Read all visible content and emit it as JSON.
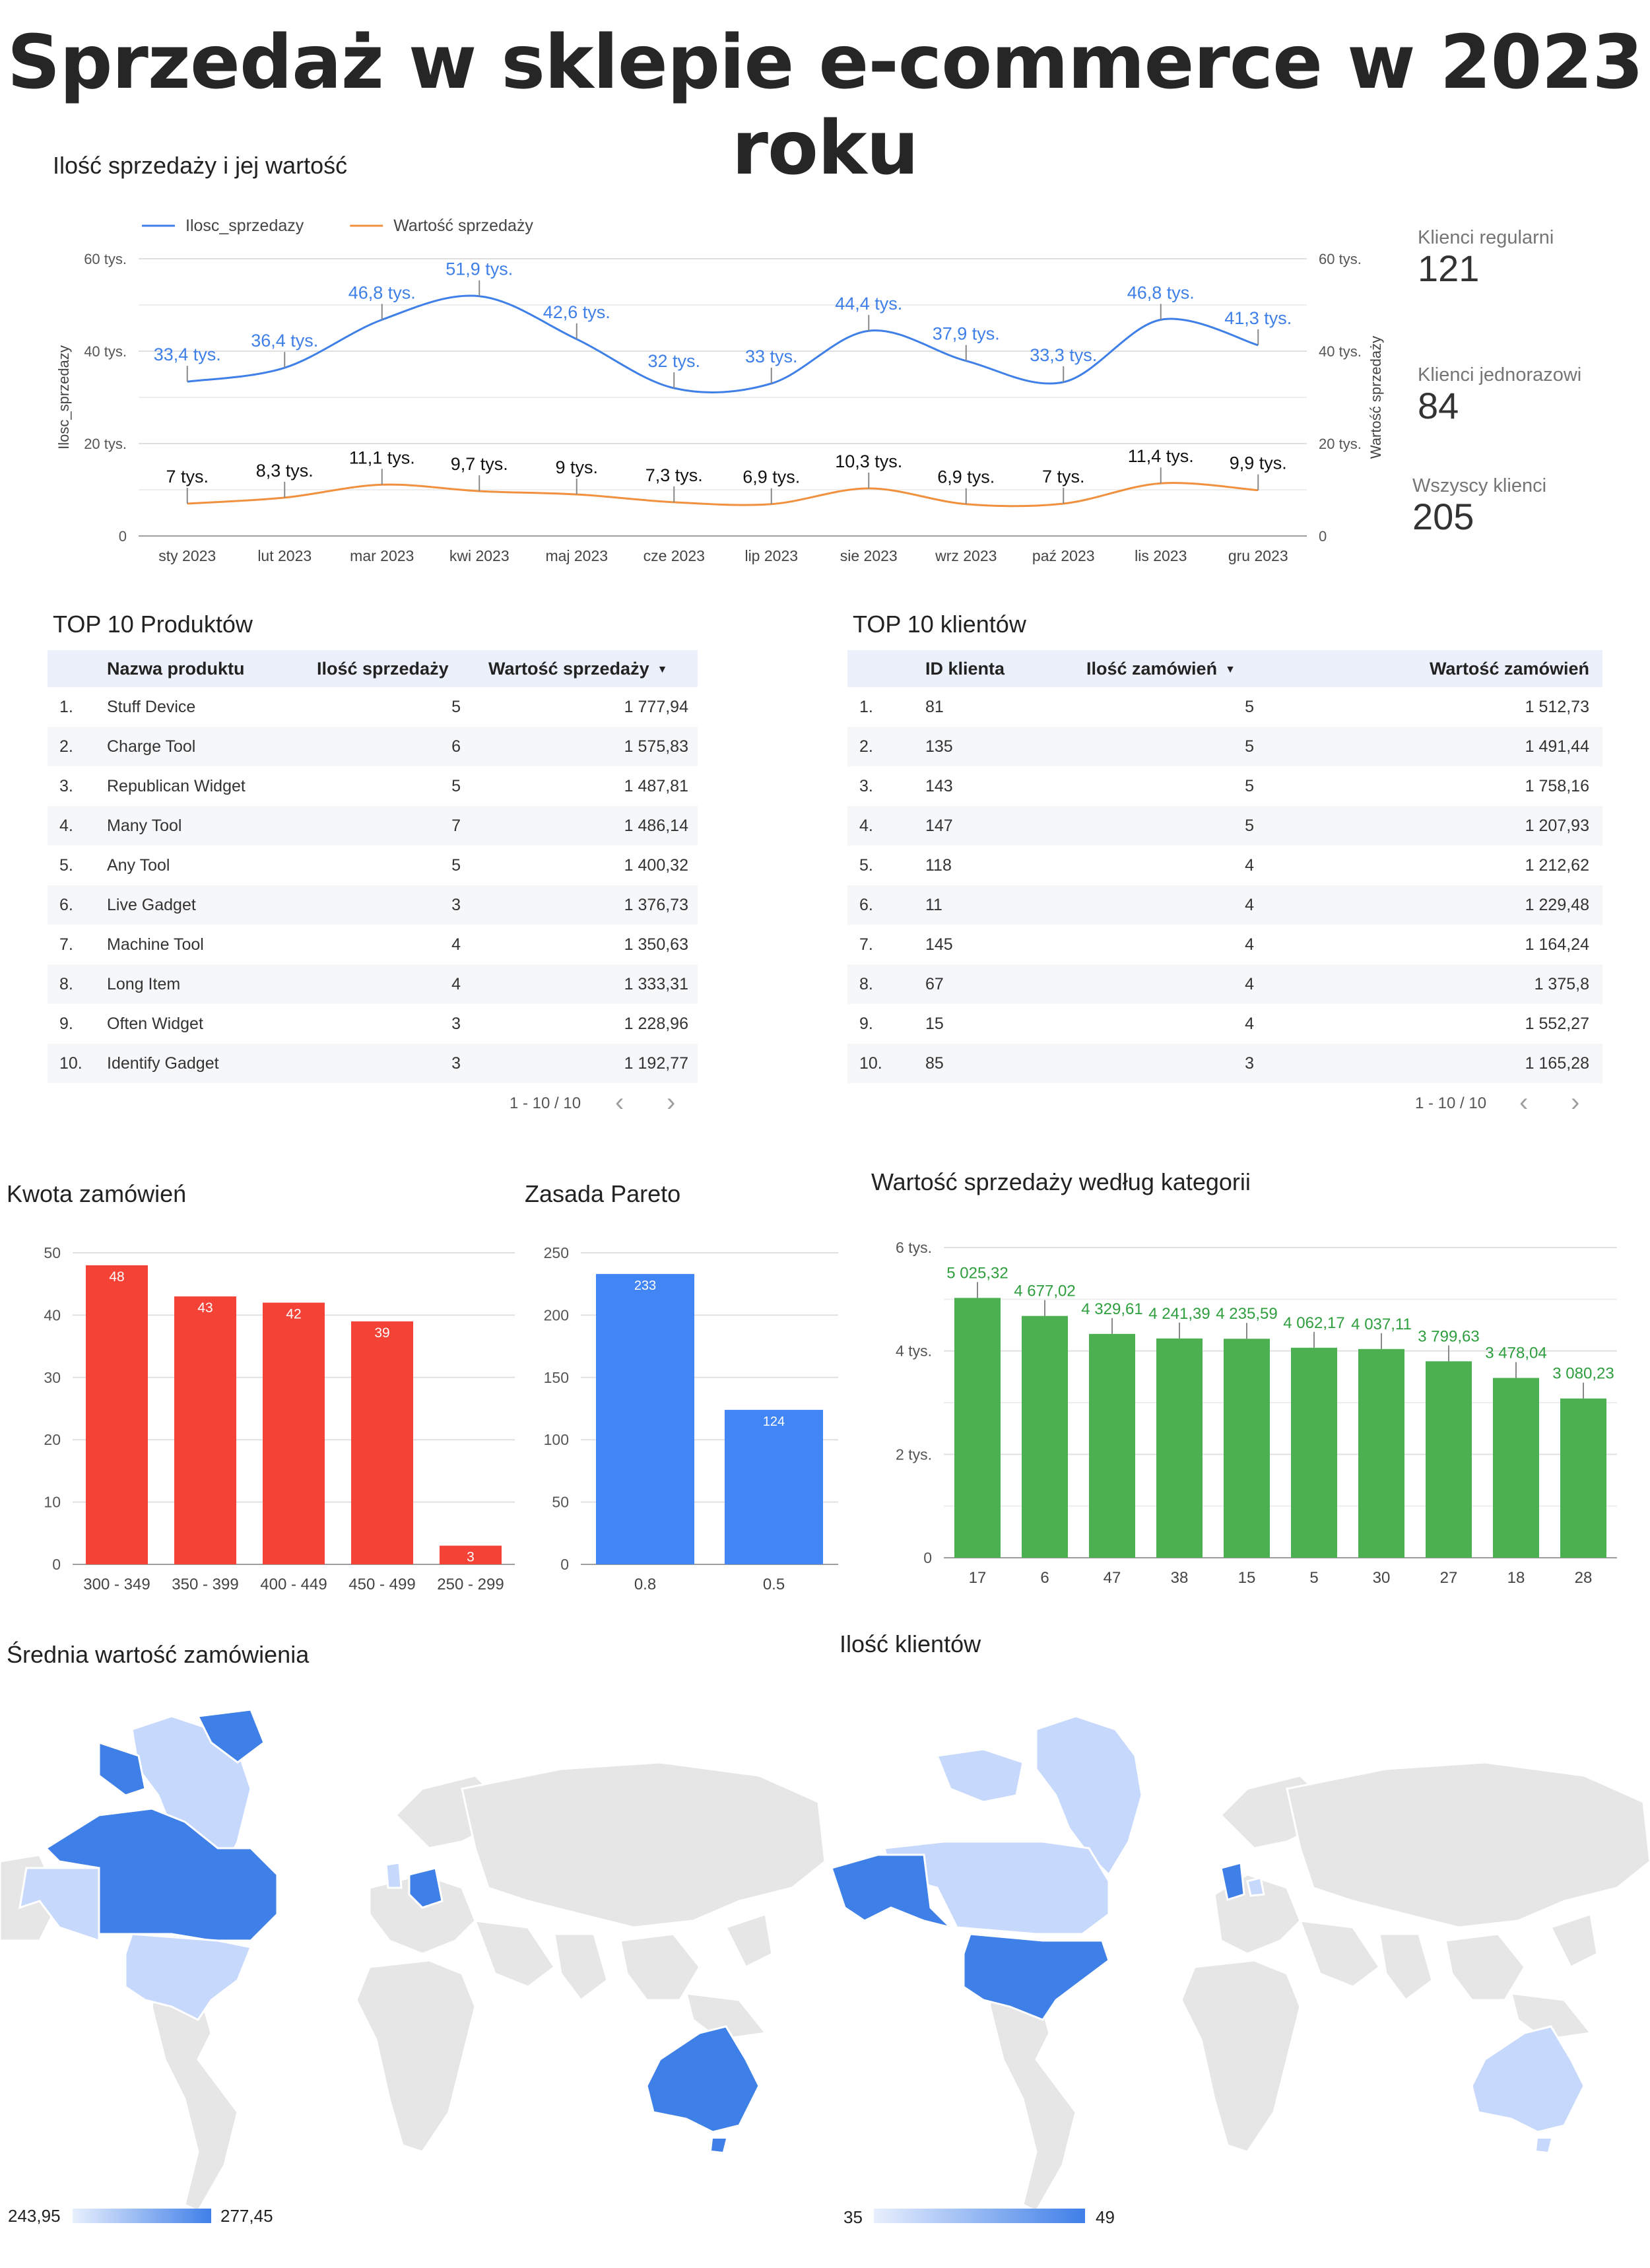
{
  "title": "Sprzedaż w sklepie e-commerce w 2023 roku",
  "colors": {
    "blue": "#3f7fe8",
    "orange": "#f0913f",
    "red": "#f44336",
    "bar_blue": "#4285f4",
    "green": "#4caf50",
    "map_light": "#c6d8fb",
    "map_dark": "#3f7fe8",
    "map_base": "#e6e6e6"
  },
  "kpis": [
    {
      "label": "Klienci regularni",
      "value": "121"
    },
    {
      "label": "Klienci jednorazowi",
      "value": "84"
    },
    {
      "label": "Wszyscy klienci",
      "value": "205"
    }
  ],
  "chart_data": [
    {
      "id": "sales-line",
      "type": "line",
      "title": "Ilość sprzedaży i jej wartość",
      "categories": [
        "sty 2023",
        "lut 2023",
        "mar 2023",
        "kwi 2023",
        "maj 2023",
        "cze 2023",
        "lip 2023",
        "sie 2023",
        "wrz 2023",
        "paź 2023",
        "lis 2023",
        "gru 2023"
      ],
      "series": [
        {
          "name": "Ilosc_sprzedazy",
          "axis": "left",
          "color": "#3f7fe8",
          "values": [
            33400,
            36400,
            46800,
            51900,
            42600,
            32000,
            33000,
            44400,
            37900,
            33300,
            46800,
            41300
          ],
          "labels": [
            "33,4 tys.",
            "36,4 tys.",
            "46,8 tys.",
            "51,9 tys.",
            "42,6 tys.",
            "32 tys.",
            "33 tys.",
            "44,4 tys.",
            "37,9 tys.",
            "33,3 tys.",
            "46,8 tys.",
            "41,3 tys."
          ]
        },
        {
          "name": "Wartość sprzedaży",
          "axis": "right",
          "color": "#f0913f",
          "values": [
            7000,
            8300,
            11100,
            9700,
            9000,
            7300,
            6900,
            10300,
            6900,
            7000,
            11400,
            9900
          ],
          "labels": [
            "7 tys.",
            "8,3 tys.",
            "11,1 tys.",
            "9,7 tys.",
            "9 tys.",
            "7,3 tys.",
            "6,9 tys.",
            "10,3 tys.",
            "6,9 tys.",
            "7 tys.",
            "11,4 tys.",
            "9,9 tys."
          ]
        }
      ],
      "ylabel": "Ilosc_sprzedazy",
      "y2label": "Wartość sprzedaży",
      "ylim": [
        0,
        60000
      ],
      "yticks": [
        "0",
        "20 tys.",
        "40 tys.",
        "60 tys."
      ],
      "grid": true,
      "legend": "top-left"
    },
    {
      "id": "orders-bar",
      "type": "bar",
      "title": "Kwota zamówień",
      "categories": [
        "300 - 349",
        "350 - 399",
        "400 - 449",
        "450 - 499",
        "250 - 299"
      ],
      "values": [
        48,
        43,
        42,
        39,
        3
      ],
      "ylim": [
        0,
        50
      ],
      "yticks": [
        "0",
        "10",
        "20",
        "30",
        "40",
        "50"
      ],
      "color": "#f44336"
    },
    {
      "id": "pareto-bar",
      "type": "bar",
      "title": "Zasada Pareto",
      "categories": [
        "0.8",
        "0.5"
      ],
      "values": [
        233,
        124
      ],
      "ylim": [
        0,
        250
      ],
      "yticks": [
        "0",
        "50",
        "100",
        "150",
        "200",
        "250"
      ],
      "color": "#4285f4"
    },
    {
      "id": "category-bar",
      "type": "bar",
      "title": "Wartość sprzedaży według kategorii",
      "categories": [
        "17",
        "6",
        "47",
        "38",
        "15",
        "5",
        "30",
        "27",
        "18",
        "28"
      ],
      "values": [
        5025.32,
        4677.02,
        4329.61,
        4241.39,
        4235.59,
        4062.17,
        4037.11,
        3799.63,
        3478.04,
        3080.23
      ],
      "labels": [
        "5 025,32",
        "4 677,02",
        "4 329,61",
        "4 241,39",
        "4 235,59",
        "4 062,17",
        "4 037,11",
        "3 799,63",
        "3 478,04",
        "3 080,23"
      ],
      "ylim": [
        0,
        6000
      ],
      "yticks": [
        "0",
        "2 tys.",
        "4 tys.",
        "6 tys."
      ],
      "color": "#4caf50"
    }
  ],
  "products": {
    "title": "TOP 10 Produktów",
    "headers": {
      "name": "Nazwa produktu",
      "qty": "Ilość sprzedaży",
      "value": "Wartość sprzedaży"
    },
    "sort_icon": "sort-down-icon",
    "rows": [
      {
        "idx": "1.",
        "name": "Stuff Device",
        "qty": "5",
        "value": "1 777,94"
      },
      {
        "idx": "2.",
        "name": "Charge Tool",
        "qty": "6",
        "value": "1 575,83"
      },
      {
        "idx": "3.",
        "name": "Republican Widget",
        "qty": "5",
        "value": "1 487,81"
      },
      {
        "idx": "4.",
        "name": "Many Tool",
        "qty": "7",
        "value": "1 486,14"
      },
      {
        "idx": "5.",
        "name": "Any Tool",
        "qty": "5",
        "value": "1 400,32"
      },
      {
        "idx": "6.",
        "name": "Live Gadget",
        "qty": "3",
        "value": "1 376,73"
      },
      {
        "idx": "7.",
        "name": "Machine Tool",
        "qty": "4",
        "value": "1 350,63"
      },
      {
        "idx": "8.",
        "name": "Long Item",
        "qty": "4",
        "value": "1 333,31"
      },
      {
        "idx": "9.",
        "name": "Often Widget",
        "qty": "3",
        "value": "1 228,96"
      },
      {
        "idx": "10.",
        "name": "Identify Gadget",
        "qty": "3",
        "value": "1 192,77"
      }
    ],
    "pager": "1 - 10 / 10"
  },
  "clients": {
    "title": "TOP 10 klientów",
    "headers": {
      "id": "ID klienta",
      "orders": "Ilość zamówień",
      "value": "Wartość zamówień"
    },
    "sort_icon": "sort-down-icon",
    "rows": [
      {
        "idx": "1.",
        "id": "81",
        "orders": "5",
        "value": "1 512,73"
      },
      {
        "idx": "2.",
        "id": "135",
        "orders": "5",
        "value": "1 491,44"
      },
      {
        "idx": "3.",
        "id": "143",
        "orders": "5",
        "value": "1 758,16"
      },
      {
        "idx": "4.",
        "id": "147",
        "orders": "5",
        "value": "1 207,93"
      },
      {
        "idx": "5.",
        "id": "118",
        "orders": "4",
        "value": "1 212,62"
      },
      {
        "idx": "6.",
        "id": "11",
        "orders": "4",
        "value": "1 229,48"
      },
      {
        "idx": "7.",
        "id": "145",
        "orders": "4",
        "value": "1 164,24"
      },
      {
        "idx": "8.",
        "id": "67",
        "orders": "4",
        "value": "1 375,8"
      },
      {
        "idx": "9.",
        "id": "15",
        "orders": "4",
        "value": "1 552,27"
      },
      {
        "idx": "10.",
        "id": "85",
        "orders": "3",
        "value": "1 165,28"
      }
    ],
    "pager": "1 - 10 / 10"
  },
  "maps": [
    {
      "title": "Średnia wartość zamówienia",
      "legend_min": "243,95",
      "legend_max": "277,45"
    },
    {
      "title": "Ilość klientów",
      "legend_min": "35",
      "legend_max": "49"
    }
  ]
}
